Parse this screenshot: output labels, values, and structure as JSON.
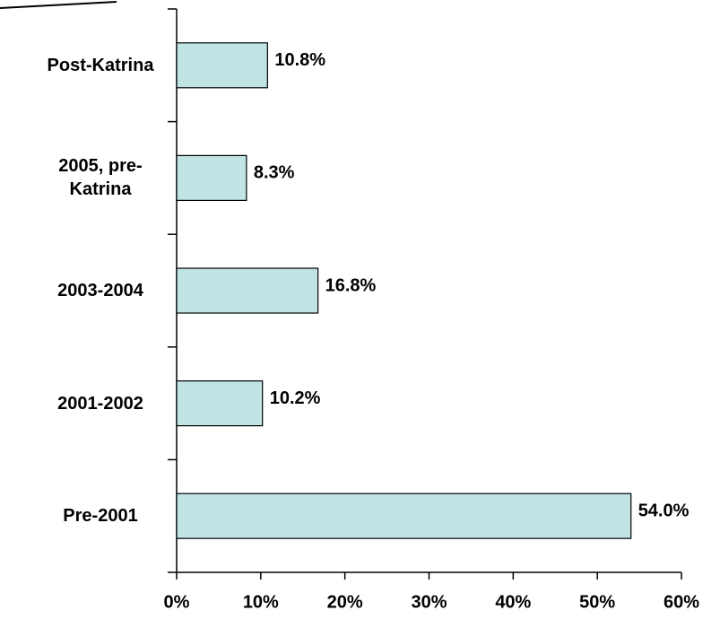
{
  "chart_data": {
    "type": "bar",
    "orientation": "horizontal",
    "categories": [
      "Post-Katrina",
      "2005, pre-Katrina",
      "2003-2004",
      "2001-2002",
      "Pre-2001"
    ],
    "values": [
      10.8,
      8.3,
      16.8,
      10.2,
      54.0
    ],
    "value_labels": [
      "10.8%",
      "8.3%",
      "16.8%",
      "10.2%",
      "54.0%"
    ],
    "color": "#c0e4e4",
    "xlim": [
      0,
      60
    ],
    "xticks": [
      {
        "value": 0,
        "label": "0%"
      },
      {
        "value": 10,
        "label": "10%"
      },
      {
        "value": 20,
        "label": "20%"
      },
      {
        "value": 30,
        "label": "30%"
      },
      {
        "value": 40,
        "label": "40%"
      },
      {
        "value": 50,
        "label": "50%"
      },
      {
        "value": 60,
        "label": "60%"
      }
    ],
    "grid": false
  }
}
